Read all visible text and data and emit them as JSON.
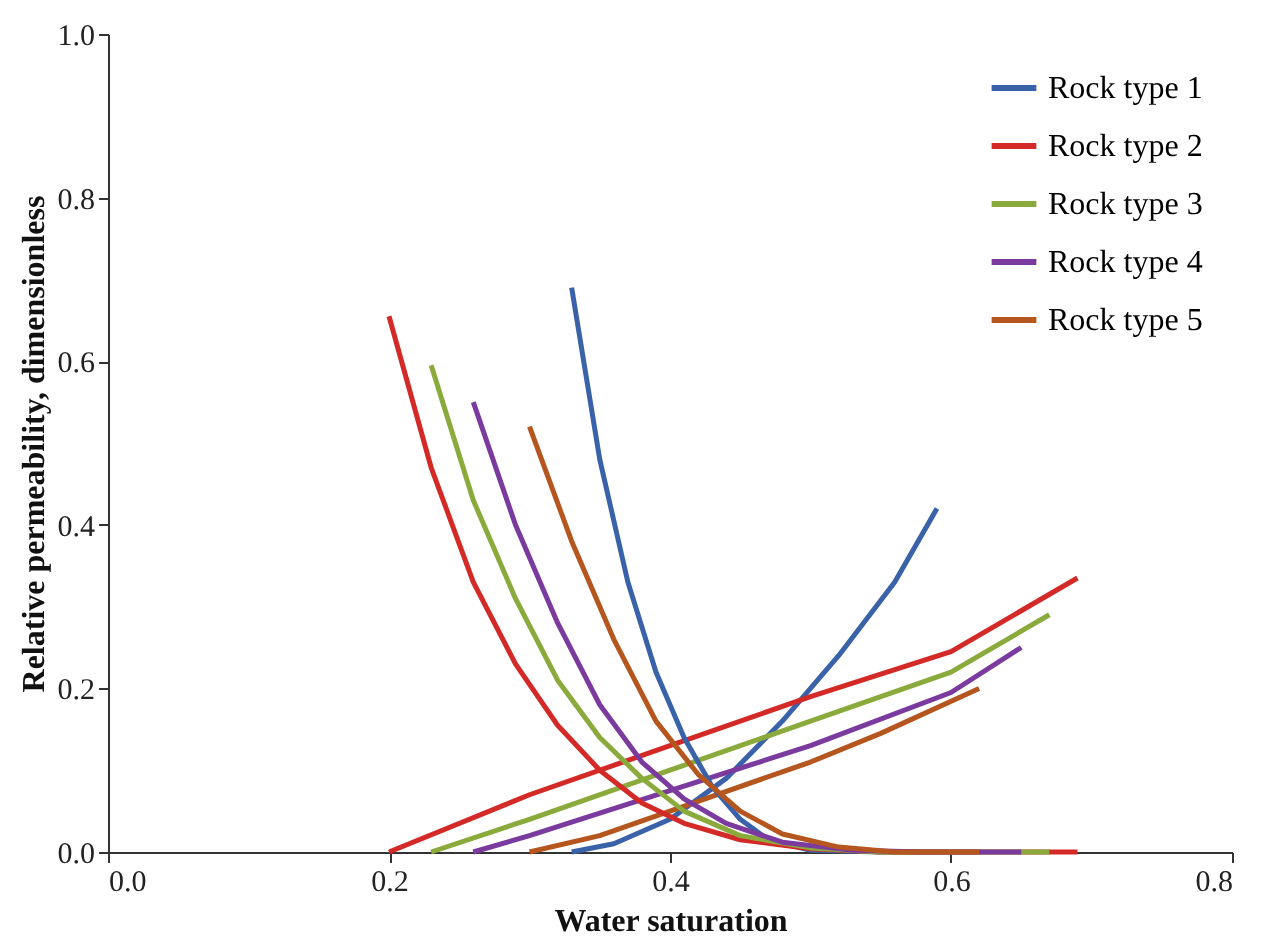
{
  "chart_data": {
    "type": "line",
    "xlabel": "Water saturation",
    "ylabel": "Relative permeability, dimensionless",
    "xlim": [
      0,
      0.8
    ],
    "ylim": [
      0,
      1
    ],
    "xticks": [
      {
        "value": 0,
        "label": "0.0"
      },
      {
        "value": 0.2,
        "label": "0.2"
      },
      {
        "value": 0.4,
        "label": "0.4"
      },
      {
        "value": 0.6,
        "label": "0.6"
      },
      {
        "value": 0.8,
        "label": "0.8"
      }
    ],
    "yticks": [
      {
        "value": 0,
        "label": "0.0"
      },
      {
        "value": 0.2,
        "label": "0.2"
      },
      {
        "value": 0.4,
        "label": "0.4"
      },
      {
        "value": 0.6,
        "label": "0.6"
      },
      {
        "value": 0.8,
        "label": "0.8"
      },
      {
        "value": 1,
        "label": "1.0"
      }
    ],
    "grid": false,
    "legend": "top right",
    "marker": "none",
    "line_style": "solid",
    "series": [
      {
        "name": "Rock type 1",
        "color": "#3a62a8",
        "x": [
          0.33,
          0.36,
          0.4,
          0.44,
          0.48,
          0.52,
          0.56,
          0.59
        ],
        "values": [
          0,
          0.01,
          0.04,
          0.09,
          0.16,
          0.24,
          0.33,
          0.42
        ]
      },
      {
        "name": "Rock type 2",
        "color": "#d42a27",
        "x": [
          0.2,
          0.3,
          0.4,
          0.5,
          0.6,
          0.69
        ],
        "values": [
          0,
          0.07,
          0.13,
          0.19,
          0.245,
          0.335
        ]
      },
      {
        "name": "Rock type 3",
        "color": "#8aab3c",
        "x": [
          0.23,
          0.3,
          0.4,
          0.5,
          0.6,
          0.67
        ],
        "values": [
          0,
          0.04,
          0.1,
          0.16,
          0.22,
          0.29
        ]
      },
      {
        "name": "Rock type 4",
        "color": "#7b3a9e",
        "x": [
          0.26,
          0.3,
          0.4,
          0.5,
          0.6,
          0.65
        ],
        "values": [
          0,
          0.02,
          0.075,
          0.13,
          0.195,
          0.25
        ]
      },
      {
        "name": "Rock type 5",
        "color": "#b5561f",
        "x": [
          0.3,
          0.35,
          0.4,
          0.5,
          0.55,
          0.62
        ],
        "values": [
          0,
          0.02,
          0.05,
          0.11,
          0.145,
          0.2
        ]
      },
      {
        "color": "#3a62a8",
        "x": [
          0.33,
          0.35,
          0.37,
          0.39,
          0.41,
          0.43,
          0.45,
          0.47,
          0.5,
          0.55,
          0.59
        ],
        "values": [
          0.69,
          0.48,
          0.33,
          0.22,
          0.14,
          0.08,
          0.04,
          0.015,
          0.002,
          0,
          0
        ]
      },
      {
        "color": "#d42a27",
        "x": [
          0.2,
          0.23,
          0.26,
          0.29,
          0.32,
          0.35,
          0.38,
          0.41,
          0.45,
          0.5,
          0.55,
          0.69
        ],
        "values": [
          0.655,
          0.47,
          0.33,
          0.23,
          0.155,
          0.1,
          0.06,
          0.035,
          0.015,
          0.004,
          0,
          0
        ]
      },
      {
        "color": "#8aab3c",
        "x": [
          0.23,
          0.26,
          0.29,
          0.32,
          0.35,
          0.38,
          0.41,
          0.45,
          0.5,
          0.55,
          0.67
        ],
        "values": [
          0.595,
          0.43,
          0.31,
          0.21,
          0.14,
          0.09,
          0.05,
          0.02,
          0.005,
          0,
          0
        ]
      },
      {
        "color": "#7b3a9e",
        "x": [
          0.26,
          0.29,
          0.32,
          0.35,
          0.38,
          0.41,
          0.44,
          0.48,
          0.53,
          0.58,
          0.65
        ],
        "values": [
          0.55,
          0.4,
          0.28,
          0.18,
          0.11,
          0.065,
          0.035,
          0.012,
          0.002,
          0,
          0
        ]
      },
      {
        "color": "#b5561f",
        "x": [
          0.3,
          0.33,
          0.36,
          0.39,
          0.42,
          0.45,
          0.48,
          0.52,
          0.56,
          0.62
        ],
        "values": [
          0.52,
          0.38,
          0.26,
          0.16,
          0.095,
          0.05,
          0.022,
          0.006,
          0,
          0
        ]
      }
    ]
  }
}
